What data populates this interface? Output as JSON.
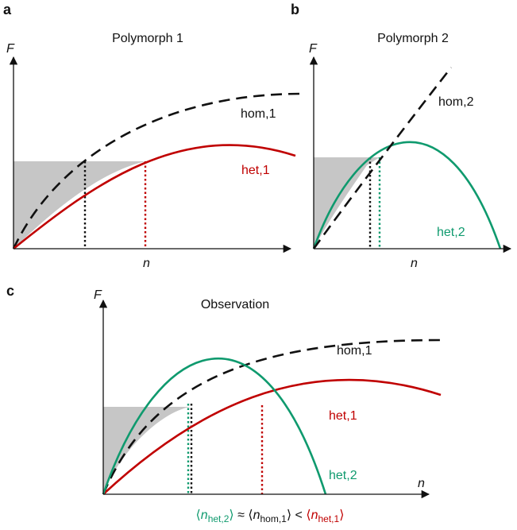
{
  "panels": [
    {
      "letter": "a",
      "title": "Polymorph 1",
      "y_label": "F",
      "x_label": "n",
      "curves": [
        "hom,1",
        "het,1"
      ]
    },
    {
      "letter": "b",
      "title": "Polymorph 2",
      "y_label": "F",
      "x_label": "n",
      "curves": [
        "hom,2",
        "het,2"
      ]
    },
    {
      "letter": "c",
      "title": "Observation",
      "y_label": "F",
      "x_label": "n",
      "curves": [
        "hom,1",
        "het,1",
        "het,2"
      ]
    }
  ],
  "formula": {
    "open": "⟨",
    "close": "⟩",
    "terms": [
      {
        "var": "n",
        "sub": "het,2"
      },
      {
        "var": "n",
        "sub": "hom,1"
      },
      {
        "var": "n",
        "sub": "het,1"
      }
    ],
    "relations": [
      "≈",
      "<"
    ]
  }
}
